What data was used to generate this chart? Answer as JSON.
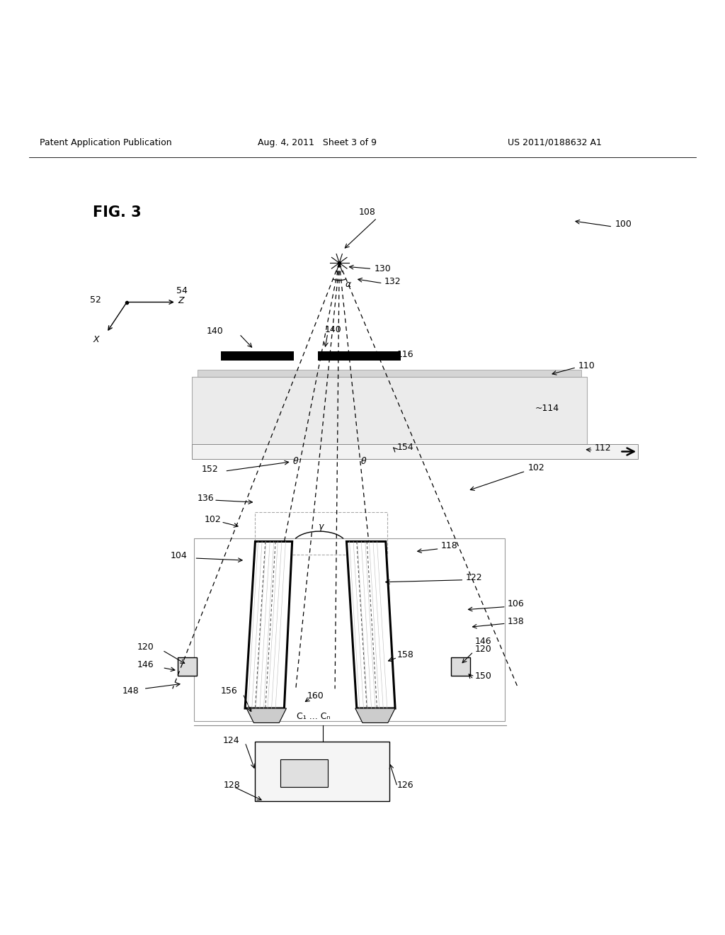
{
  "bg_color": "#ffffff",
  "header_left": "Patent Application Publication",
  "header_mid": "Aug. 4, 2011   Sheet 3 of 9",
  "header_right": "US 2011/0188632 A1",
  "fig_label": "FIG. 3"
}
